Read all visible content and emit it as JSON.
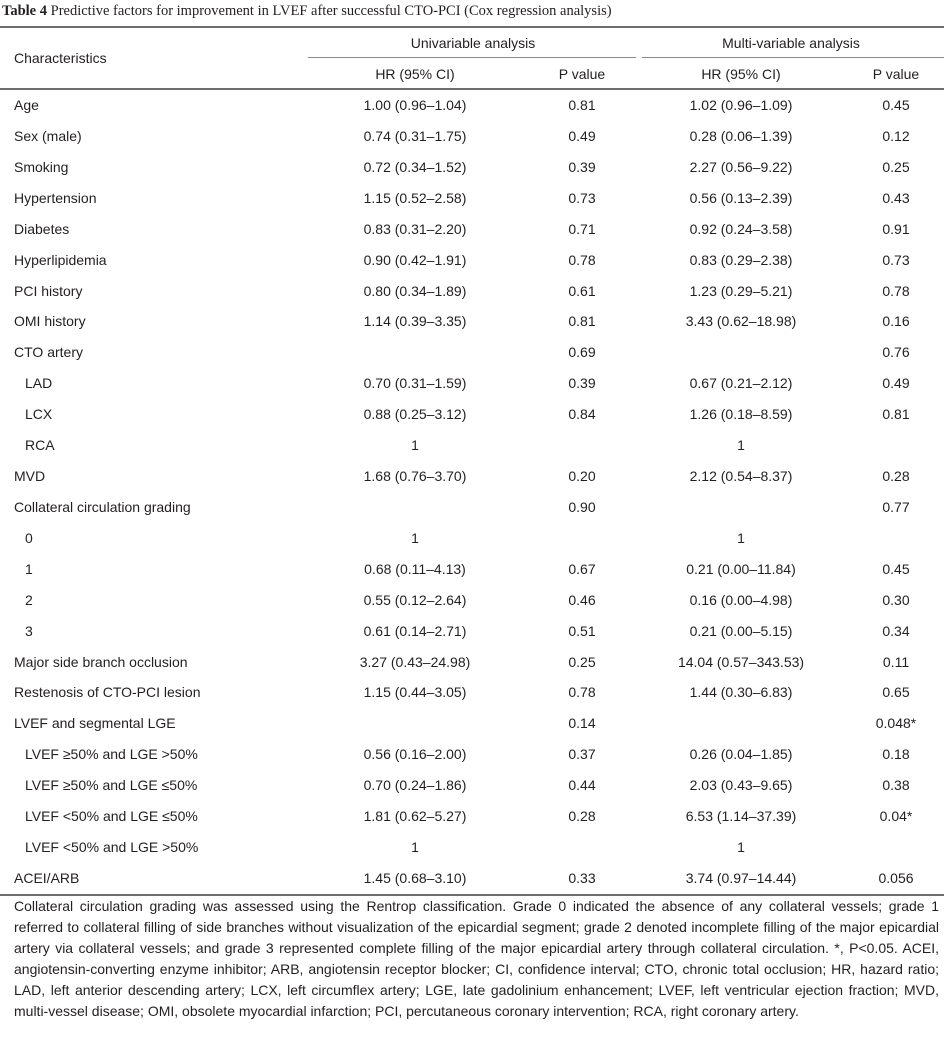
{
  "caption": {
    "label": "Table 4",
    "text": "Predictive factors for improvement in LVEF after successful CTO-PCI (Cox regression analysis)"
  },
  "header": {
    "characteristics": "Characteristics",
    "univariable": "Univariable analysis",
    "multivariable": "Multi-variable analysis",
    "hr_uni": "HR (95% CI)",
    "p_uni": "P value",
    "hr_multi": "HR (95% CI)",
    "p_multi": "P value"
  },
  "rows": [
    {
      "label": "Age",
      "indent": false,
      "hr_uni": "1.00 (0.96–1.04)",
      "p_uni": "0.81",
      "hr_multi": "1.02 (0.96–1.09)",
      "p_multi": "0.45"
    },
    {
      "label": "Sex (male)",
      "indent": false,
      "hr_uni": "0.74 (0.31–1.75)",
      "p_uni": "0.49",
      "hr_multi": "0.28 (0.06–1.39)",
      "p_multi": "0.12"
    },
    {
      "label": "Smoking",
      "indent": false,
      "hr_uni": "0.72 (0.34–1.52)",
      "p_uni": "0.39",
      "hr_multi": "2.27 (0.56–9.22)",
      "p_multi": "0.25"
    },
    {
      "label": "Hypertension",
      "indent": false,
      "hr_uni": "1.15 (0.52–2.58)",
      "p_uni": "0.73",
      "hr_multi": "0.56 (0.13–2.39)",
      "p_multi": "0.43"
    },
    {
      "label": "Diabetes",
      "indent": false,
      "hr_uni": "0.83 (0.31–2.20)",
      "p_uni": "0.71",
      "hr_multi": "0.92 (0.24–3.58)",
      "p_multi": "0.91"
    },
    {
      "label": "Hyperlipidemia",
      "indent": false,
      "hr_uni": "0.90 (0.42–1.91)",
      "p_uni": "0.78",
      "hr_multi": "0.83 (0.29–2.38)",
      "p_multi": "0.73"
    },
    {
      "label": "PCI history",
      "indent": false,
      "hr_uni": "0.80 (0.34–1.89)",
      "p_uni": "0.61",
      "hr_multi": "1.23 (0.29–5.21)",
      "p_multi": "0.78"
    },
    {
      "label": "OMI history",
      "indent": false,
      "hr_uni": "1.14 (0.39–3.35)",
      "p_uni": "0.81",
      "hr_multi": "3.43 (0.62–18.98)",
      "p_multi": "0.16"
    },
    {
      "label": "CTO artery",
      "indent": false,
      "hr_uni": "",
      "p_uni": "0.69",
      "hr_multi": "",
      "p_multi": "0.76"
    },
    {
      "label": "LAD",
      "indent": true,
      "hr_uni": "0.70 (0.31–1.59)",
      "p_uni": "0.39",
      "hr_multi": "0.67 (0.21–2.12)",
      "p_multi": "0.49"
    },
    {
      "label": "LCX",
      "indent": true,
      "hr_uni": "0.88 (0.25–3.12)",
      "p_uni": "0.84",
      "hr_multi": "1.26 (0.18–8.59)",
      "p_multi": "0.81"
    },
    {
      "label": "RCA",
      "indent": true,
      "hr_uni": "1",
      "p_uni": "",
      "hr_multi": "1",
      "p_multi": ""
    },
    {
      "label": "MVD",
      "indent": false,
      "hr_uni": "1.68 (0.76–3.70)",
      "p_uni": "0.20",
      "hr_multi": "2.12 (0.54–8.37)",
      "p_multi": "0.28"
    },
    {
      "label": "Collateral circulation grading",
      "indent": false,
      "hr_uni": "",
      "p_uni": "0.90",
      "hr_multi": "",
      "p_multi": "0.77"
    },
    {
      "label": "0",
      "indent": true,
      "hr_uni": "1",
      "p_uni": "",
      "hr_multi": "1",
      "p_multi": ""
    },
    {
      "label": "1",
      "indent": true,
      "hr_uni": "0.68 (0.11–4.13)",
      "p_uni": "0.67",
      "hr_multi": "0.21 (0.00–11.84)",
      "p_multi": "0.45"
    },
    {
      "label": "2",
      "indent": true,
      "hr_uni": "0.55 (0.12–2.64)",
      "p_uni": "0.46",
      "hr_multi": "0.16 (0.00–4.98)",
      "p_multi": "0.30"
    },
    {
      "label": "3",
      "indent": true,
      "hr_uni": "0.61 (0.14–2.71)",
      "p_uni": "0.51",
      "hr_multi": "0.21 (0.00–5.15)",
      "p_multi": "0.34"
    },
    {
      "label": "Major side branch occlusion",
      "indent": false,
      "hr_uni": "3.27 (0.43–24.98)",
      "p_uni": "0.25",
      "hr_multi": "14.04 (0.57–343.53)",
      "p_multi": "0.11"
    },
    {
      "label": "Restenosis of CTO-PCI lesion",
      "indent": false,
      "hr_uni": "1.15 (0.44–3.05)",
      "p_uni": "0.78",
      "hr_multi": "1.44 (0.30–6.83)",
      "p_multi": "0.65"
    },
    {
      "label": "LVEF and segmental LGE",
      "indent": false,
      "hr_uni": "",
      "p_uni": "0.14",
      "hr_multi": "",
      "p_multi": "0.048*"
    },
    {
      "label": "LVEF ≥50% and LGE >50%",
      "indent": true,
      "hr_uni": "0.56 (0.16–2.00)",
      "p_uni": "0.37",
      "hr_multi": "0.26 (0.04–1.85)",
      "p_multi": "0.18"
    },
    {
      "label": "LVEF ≥50% and LGE ≤50%",
      "indent": true,
      "hr_uni": "0.70 (0.24–1.86)",
      "p_uni": "0.44",
      "hr_multi": "2.03 (0.43–9.65)",
      "p_multi": "0.38"
    },
    {
      "label": "LVEF <50% and LGE ≤50%",
      "indent": true,
      "hr_uni": "1.81 (0.62–5.27)",
      "p_uni": "0.28",
      "hr_multi": "6.53 (1.14–37.39)",
      "p_multi": "0.04*"
    },
    {
      "label": "LVEF <50% and LGE >50%",
      "indent": true,
      "hr_uni": "1",
      "p_uni": "",
      "hr_multi": "1",
      "p_multi": ""
    },
    {
      "label": "ACEI/ARB",
      "indent": false,
      "hr_uni": "1.45 (0.68–3.10)",
      "p_uni": "0.33",
      "hr_multi": "3.74 (0.97–14.44)",
      "p_multi": "0.056"
    }
  ],
  "footnote": "Collateral circulation grading was assessed using the Rentrop classification. Grade 0 indicated the absence of any collateral vessels; grade 1 referred to collateral filling of side branches without visualization of the epicardial segment; grade 2 denoted incomplete filling of the major epicardial artery via collateral vessels; and grade 3 represented complete filling of the major epicardial artery through collateral circulation. *, P<0.05. ACEI, angiotensin-converting enzyme inhibitor; ARB, angiotensin receptor blocker; CI, confidence interval; CTO, chronic total occlusion; HR, hazard ratio; LAD, left anterior descending artery; LCX, left circumflex artery; LGE, late gadolinium enhancement; LVEF, left ventricular ejection fraction; MVD, multi-vessel disease; OMI, obsolete myocardial infarction; PCI, percutaneous coronary intervention; RCA, right coronary artery."
}
